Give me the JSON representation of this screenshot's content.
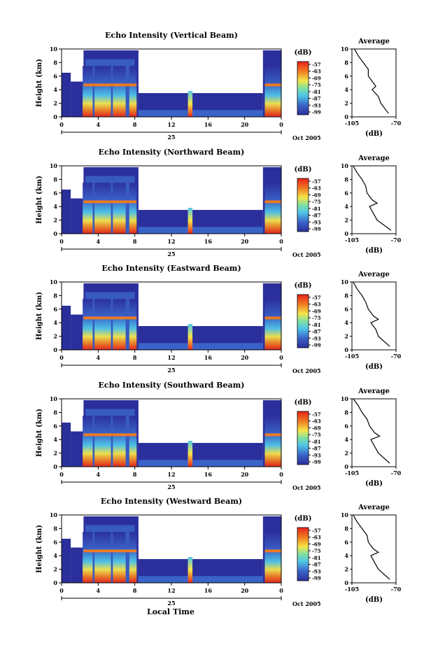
{
  "figure": {
    "xlabel": "Local Time",
    "day_label": "25",
    "date_label": "Oct 2005",
    "colorbar_unit": "(dB)",
    "colorbar_ticks": [
      "-57",
      "-63",
      "-69",
      "-75",
      "-81",
      "-87",
      "-93",
      "-99"
    ],
    "avg_title": "Average",
    "avg_xlabel": "(dB)",
    "avg_xticks": [
      "-105",
      "-70"
    ],
    "colors": {
      "cold": "#2b2f9c",
      "mid": "#4fc6e8",
      "warm": "#f07a20",
      "hot": "#e8231a"
    }
  },
  "chart_data": [
    {
      "type": "heatmap",
      "title": "Echo Intensity (Vertical Beam)",
      "ylabel": "Height (km)",
      "xlim": [
        0,
        24
      ],
      "ylim": [
        0,
        10
      ],
      "xticks": [
        "0",
        "4",
        "8",
        "12",
        "16",
        "20",
        "0"
      ],
      "yticks": [
        "0",
        "2",
        "4",
        "6",
        "8",
        "10"
      ],
      "color_scale_db": [
        -99,
        -57
      ],
      "average_profile": {
        "xlim": [
          -105,
          -70
        ],
        "x": [
          -103,
          -100,
          -96,
          -92,
          -92,
          -88,
          -86,
          -89,
          -84,
          -82,
          -76
        ],
        "y": [
          10,
          9,
          8,
          7,
          6,
          5,
          4.5,
          4,
          3,
          2,
          0.5
        ]
      }
    },
    {
      "type": "heatmap",
      "title": "Echo Intensity (Northward Beam)",
      "ylabel": "Height (km)",
      "xlim": [
        0,
        24
      ],
      "ylim": [
        0,
        10
      ],
      "xticks": [
        "0",
        "4",
        "8",
        "12",
        "16",
        "20",
        "0"
      ],
      "yticks": [
        "0",
        "2",
        "4",
        "6",
        "8",
        "10"
      ],
      "color_scale_db": [
        -99,
        -57
      ],
      "average_profile": {
        "xlim": [
          -105,
          -70
        ],
        "x": [
          -104,
          -101,
          -97,
          -94,
          -93,
          -89,
          -85,
          -91,
          -88,
          -85,
          -74
        ],
        "y": [
          10,
          9,
          8,
          7,
          6,
          5,
          4.5,
          4,
          3,
          2,
          0.5
        ]
      }
    },
    {
      "type": "heatmap",
      "title": "Echo Intensity (Eastward Beam)",
      "ylabel": "Height (km)",
      "xlim": [
        0,
        24
      ],
      "ylim": [
        0,
        10
      ],
      "xticks": [
        "0",
        "4",
        "8",
        "12",
        "16",
        "20",
        "0"
      ],
      "yticks": [
        "0",
        "2",
        "4",
        "6",
        "8",
        "10"
      ],
      "color_scale_db": [
        -99,
        -57
      ],
      "average_profile": {
        "xlim": [
          -105,
          -70
        ],
        "x": [
          -104,
          -101,
          -97,
          -94,
          -92,
          -88,
          -84,
          -90,
          -86,
          -84,
          -75
        ],
        "y": [
          10,
          9,
          8,
          7,
          6,
          5,
          4.5,
          4,
          3,
          2,
          0.5
        ]
      }
    },
    {
      "type": "heatmap",
      "title": "Echo Intensity (Southward Beam)",
      "ylabel": "Height (km)",
      "xlim": [
        0,
        24
      ],
      "ylim": [
        0,
        10
      ],
      "xticks": [
        "0",
        "4",
        "8",
        "12",
        "16",
        "20",
        "0"
      ],
      "yticks": [
        "0",
        "2",
        "4",
        "6",
        "8",
        "10"
      ],
      "color_scale_db": [
        -99,
        -57
      ],
      "average_profile": {
        "xlim": [
          -105,
          -70
        ],
        "x": [
          -104,
          -100,
          -97,
          -93,
          -91,
          -87,
          -83,
          -90,
          -87,
          -84,
          -75
        ],
        "y": [
          10,
          9,
          8,
          7,
          6,
          5,
          4.5,
          4,
          3,
          2,
          0.5
        ]
      }
    },
    {
      "type": "heatmap",
      "title": "Echo Intensity (Westward Beam)",
      "ylabel": "Height (km)",
      "xlim": [
        0,
        24
      ],
      "ylim": [
        0,
        10
      ],
      "xticks": [
        "0",
        "4",
        "8",
        "12",
        "16",
        "20",
        "0"
      ],
      "yticks": [
        "0",
        "2",
        "4",
        "6",
        "8",
        "10"
      ],
      "color_scale_db": [
        -99,
        -57
      ],
      "average_profile": {
        "xlim": [
          -105,
          -70
        ],
        "x": [
          -104,
          -101,
          -97,
          -93,
          -92,
          -88,
          -84,
          -90,
          -87,
          -84,
          -75
        ],
        "y": [
          10,
          9,
          8,
          7,
          6,
          5,
          4.5,
          4,
          3,
          2,
          0.5
        ]
      }
    }
  ]
}
